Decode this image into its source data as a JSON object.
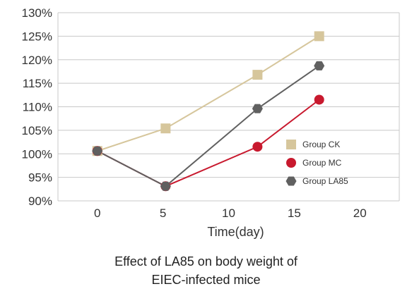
{
  "chart_data": {
    "type": "line",
    "xlabel": "Time(day)",
    "ylabel": "",
    "xlim": [
      -3,
      23
    ],
    "ylim": [
      90,
      130
    ],
    "x_ticks": [
      0,
      5,
      10,
      15,
      20
    ],
    "y_ticks": [
      90,
      95,
      100,
      105,
      110,
      115,
      120,
      125,
      130
    ],
    "y_tick_labels": [
      "90%",
      "95%",
      "100%",
      "105%",
      "110%",
      "115%",
      "120%",
      "125%",
      "130%"
    ],
    "x_tick_labels": [
      "0",
      "5",
      "10",
      "15",
      "20"
    ],
    "grid": "horizontal",
    "legend_position": "right",
    "series": [
      {
        "name": "Group CK",
        "color": "#d6c69c",
        "marker": "square",
        "x": [
          0,
          5.2,
          12.2,
          16.9
        ],
        "y": [
          100.6,
          105.4,
          116.8,
          125.0
        ]
      },
      {
        "name": "Group MC",
        "color": "#c8192e",
        "marker": "circle",
        "x": [
          0,
          5.2,
          12.2,
          16.9
        ],
        "y": [
          100.6,
          93.1,
          101.5,
          111.5
        ]
      },
      {
        "name": "Group LA85",
        "color": "#606060",
        "marker": "hexagon",
        "x": [
          0,
          5.2,
          12.2,
          16.9
        ],
        "y": [
          100.6,
          93.1,
          109.6,
          118.7
        ]
      }
    ]
  },
  "caption": {
    "line1": "Effect of LA85 on body weight of",
    "line2": "EIEC-infected mice"
  }
}
